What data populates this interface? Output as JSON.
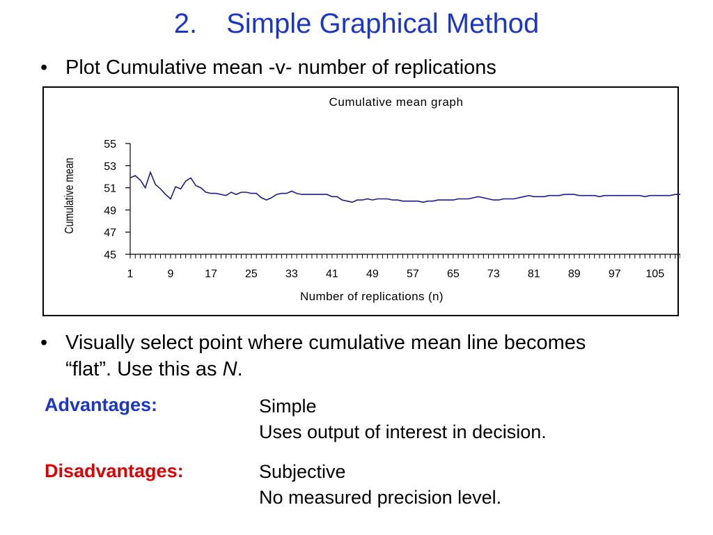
{
  "slide": {
    "title_number": "2.",
    "title_text": "Simple Graphical Method",
    "bullet1": "Plot Cumulative mean -v- number of replications",
    "bullet2_line1": "Visually select point where cumulative mean line becomes",
    "bullet2_line2_prefix": "“flat”.  Use this as ",
    "bullet2_line2_italic": "N",
    "bullet2_line2_suffix": ".",
    "bullet_symbol": "•",
    "advantages_label": "Advantages:",
    "advantages_values": [
      "Simple",
      "Uses output of interest in decision."
    ],
    "disadvantages_label": "Disadvantages:",
    "disadvantages_values": [
      "Subjective",
      "No measured precision level."
    ],
    "colors": {
      "title": "#1a36c8",
      "advantages": "#1a36c8",
      "disadvantages": "#e00000",
      "line": "#1a1a8c"
    }
  },
  "chart_data": {
    "type": "line",
    "title": "Cumulative mean graph",
    "xlabel": "Number of replications (n)",
    "ylabel": "Cumulative mean",
    "ylim": [
      45,
      55
    ],
    "yticks": [
      45,
      47,
      49,
      51,
      53,
      55
    ],
    "xlim": [
      1,
      110
    ],
    "xticks": [
      1,
      9,
      17,
      25,
      33,
      41,
      49,
      57,
      65,
      73,
      81,
      89,
      97,
      105
    ],
    "grid": false,
    "legend": "none",
    "series": [
      {
        "x": [
          1,
          2,
          3,
          4,
          5,
          6,
          7,
          8,
          9,
          10,
          11,
          12,
          13,
          14,
          15,
          16,
          17,
          18,
          19,
          20,
          21,
          22,
          23,
          24,
          25,
          26,
          27,
          28,
          29,
          30,
          31,
          32,
          33,
          34,
          35,
          36,
          37,
          38,
          39,
          40,
          41,
          42,
          43,
          44,
          45,
          46,
          47,
          48,
          49,
          50,
          51,
          52,
          53,
          54,
          55,
          56,
          57,
          58,
          59,
          60,
          61,
          62,
          63,
          64,
          65,
          66,
          67,
          68,
          69,
          70,
          71,
          72,
          73,
          74,
          75,
          76,
          77,
          78,
          79,
          80,
          81,
          82,
          83,
          84,
          85,
          86,
          87,
          88,
          89,
          90,
          91,
          92,
          93,
          94,
          95,
          96,
          97,
          98,
          99,
          100,
          101,
          102,
          103,
          104,
          105,
          106,
          107,
          108,
          109,
          110
        ],
        "values": [
          51.9,
          52.1,
          51.7,
          51.0,
          52.4,
          51.3,
          50.9,
          50.4,
          50.0,
          51.1,
          50.9,
          51.6,
          51.9,
          51.2,
          51.0,
          50.6,
          50.5,
          50.5,
          50.4,
          50.3,
          50.6,
          50.4,
          50.6,
          50.6,
          50.5,
          50.5,
          50.1,
          49.9,
          50.1,
          50.4,
          50.5,
          50.5,
          50.7,
          50.5,
          50.4,
          50.4,
          50.4,
          50.4,
          50.4,
          50.4,
          50.2,
          50.2,
          49.9,
          49.8,
          49.7,
          49.9,
          49.9,
          50.0,
          49.9,
          50.0,
          50.0,
          50.0,
          49.9,
          49.9,
          49.8,
          49.8,
          49.8,
          49.8,
          49.7,
          49.8,
          49.8,
          49.9,
          49.9,
          49.9,
          49.9,
          50.0,
          50.0,
          50.0,
          50.1,
          50.2,
          50.1,
          50.0,
          49.9,
          49.9,
          50.0,
          50.0,
          50.0,
          50.1,
          50.2,
          50.3,
          50.2,
          50.2,
          50.2,
          50.3,
          50.3,
          50.3,
          50.4,
          50.4,
          50.4,
          50.3,
          50.3,
          50.3,
          50.3,
          50.2,
          50.3,
          50.3,
          50.3,
          50.3,
          50.3,
          50.3,
          50.3,
          50.3,
          50.2,
          50.3,
          50.3,
          50.3,
          50.3,
          50.3,
          50.4,
          50.4
        ]
      }
    ]
  }
}
